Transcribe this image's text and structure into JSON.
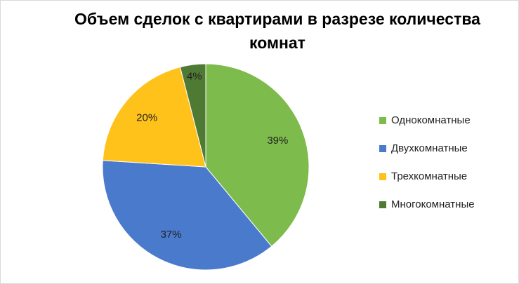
{
  "chart_data": {
    "type": "pie",
    "title": "Объем сделок с квартирами в разрезе количества комнат",
    "categories": [
      "Однокомнатные",
      "Двухкомнатные",
      "Трехкомнатные",
      "Многокомнатные"
    ],
    "values": [
      39,
      37,
      20,
      4
    ],
    "value_labels": [
      "39%",
      "37%",
      "20%",
      "4%"
    ],
    "colors": [
      "#7dbb4c",
      "#4a7acc",
      "#ffc21a",
      "#4f7a33"
    ],
    "legend": "right"
  }
}
